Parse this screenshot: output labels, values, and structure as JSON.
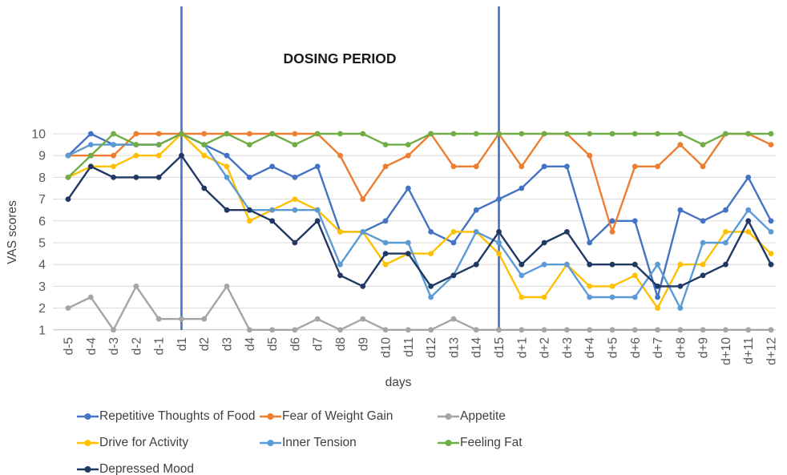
{
  "figure": {
    "annotation": "DOSING PERIOD",
    "xlabel": "days",
    "ylabel": "VAS scores"
  },
  "chart_data": {
    "type": "line",
    "title": "",
    "annotation": "DOSING PERIOD",
    "xlabel": "days",
    "ylabel": "VAS scores",
    "ylim": [
      1,
      10
    ],
    "yticks": [
      1,
      2,
      3,
      4,
      5,
      6,
      7,
      8,
      9,
      10
    ],
    "grid": true,
    "legend_position": "bottom",
    "gridline_color": "#D9D9D9",
    "axis_text_color": "#595959",
    "vertical_lines": {
      "at": [
        "d1",
        "d15"
      ],
      "color": "#4472C4"
    },
    "categories": [
      "d-5",
      "d-4",
      "d-3",
      "d-2",
      "d-1",
      "d1",
      "d2",
      "d3",
      "d4",
      "d5",
      "d6",
      "d7",
      "d8",
      "d9",
      "d10",
      "d11",
      "d12",
      "d13",
      "d14",
      "d15",
      "d+1",
      "d+2",
      "d+3",
      "d+4",
      "d+5",
      "d+6",
      "d+7",
      "d+8",
      "d+9",
      "d+10",
      "d+11",
      "d+12"
    ],
    "series": [
      {
        "name": "Repetitive Thoughts of Food",
        "color": "#4472C4",
        "values": [
          9,
          10,
          9.5,
          9.5,
          9.5,
          10,
          9.5,
          9,
          8,
          8.5,
          8,
          8.5,
          5.5,
          5.5,
          6,
          7.5,
          5.5,
          5,
          6.5,
          7,
          7.5,
          8.5,
          8.5,
          5,
          6,
          6,
          2.5,
          6.5,
          6,
          6.5,
          8,
          6
        ]
      },
      {
        "name": "Fear of Weight Gain",
        "color": "#ED7D31",
        "values": [
          9,
          9,
          9,
          10,
          10,
          10,
          10,
          10,
          10,
          10,
          10,
          10,
          9,
          7,
          8.5,
          9,
          10,
          8.5,
          8.5,
          10,
          8.5,
          10,
          10,
          9,
          5.5,
          8.5,
          8.5,
          9.5,
          8.5,
          10,
          10,
          9.5
        ]
      },
      {
        "name": "Appetite",
        "color": "#A5A5A5",
        "values": [
          2,
          2.5,
          1,
          3,
          1.5,
          1.5,
          1.5,
          3,
          1,
          1,
          1,
          1.5,
          1,
          1.5,
          1,
          1,
          1,
          1.5,
          1,
          1,
          1,
          1,
          1,
          1,
          1,
          1,
          1,
          1,
          1,
          1,
          1,
          1
        ]
      },
      {
        "name": "Drive for Activity",
        "color": "#FFC000",
        "values": [
          8,
          8.5,
          8.5,
          9,
          9,
          10,
          9,
          8.5,
          6,
          6.5,
          7,
          6.5,
          5.5,
          5.5,
          4,
          4.5,
          4.5,
          5.5,
          5.5,
          4.5,
          2.5,
          2.5,
          4,
          3,
          3,
          3.5,
          2,
          4,
          4,
          5.5,
          5.5,
          4.5
        ]
      },
      {
        "name": "Inner Tension",
        "color": "#5B9BD5",
        "values": [
          9,
          9.5,
          9.5,
          9.5,
          9.5,
          10,
          9.5,
          8,
          6.5,
          6.5,
          6.5,
          6.5,
          4,
          5.5,
          5,
          5,
          2.5,
          3.5,
          5.5,
          5,
          3.5,
          4,
          4,
          2.5,
          2.5,
          2.5,
          4,
          2,
          5,
          5,
          6.5,
          5.5
        ]
      },
      {
        "name": "Feeling Fat",
        "color": "#70AD47",
        "values": [
          8,
          9,
          10,
          9.5,
          9.5,
          10,
          9.5,
          10,
          9.5,
          10,
          9.5,
          10,
          10,
          10,
          9.5,
          9.5,
          10,
          10,
          10,
          10,
          10,
          10,
          10,
          10,
          10,
          10,
          10,
          10,
          9.5,
          10,
          10,
          10
        ]
      },
      {
        "name": "Depressed Mood",
        "color": "#203864",
        "values": [
          7,
          8.5,
          8,
          8,
          8,
          9,
          7.5,
          6.5,
          6.5,
          6,
          5,
          6,
          3.5,
          3,
          4.5,
          4.5,
          3,
          3.5,
          4,
          5.5,
          4,
          5,
          5.5,
          4,
          4,
          4,
          3,
          3,
          3.5,
          4,
          6,
          4
        ]
      }
    ]
  }
}
